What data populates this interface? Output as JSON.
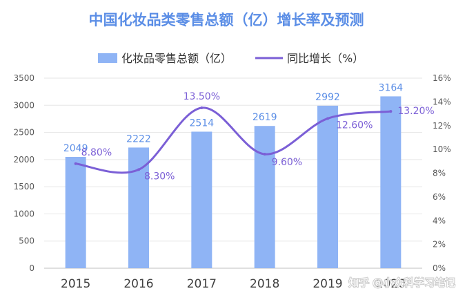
{
  "chart_data": {
    "type": "bar",
    "title": "中国化妆品类零售总额（亿）增长率及预测",
    "categories": [
      "2015",
      "2016",
      "2017",
      "2018",
      "2019",
      "2020"
    ],
    "series": [
      {
        "name": "化妆品零售总额（亿）",
        "type": "bar",
        "axis": "left",
        "color": "#8fb4f5",
        "values": [
          2049,
          2222,
          2514,
          2619,
          2992,
          3164
        ],
        "labels": [
          "2049",
          "2222",
          "2514",
          "2619",
          "2992",
          "3164"
        ]
      },
      {
        "name": "同比增长（%）",
        "type": "line",
        "axis": "right",
        "color": "#7b5fd6",
        "values": [
          8.8,
          8.3,
          13.5,
          9.6,
          12.6,
          13.2
        ],
        "labels": [
          "8.80%",
          "8.30%",
          "13.50%",
          "9.60%",
          "12.60%",
          "13.20%"
        ]
      }
    ],
    "y_left": {
      "min": 0,
      "max": 3500,
      "ticks": [
        "0",
        "500",
        "1000",
        "1500",
        "2000",
        "2500",
        "3000",
        "3500"
      ]
    },
    "y_right": {
      "min": 0,
      "max": 16,
      "ticks": [
        "0%",
        "2%",
        "4%",
        "6%",
        "8%",
        "10%",
        "12%",
        "14%",
        "16%"
      ]
    },
    "grid": true,
    "legend_position": "top"
  },
  "watermark": {
    "text": "知乎 @小众科学习笔记"
  }
}
